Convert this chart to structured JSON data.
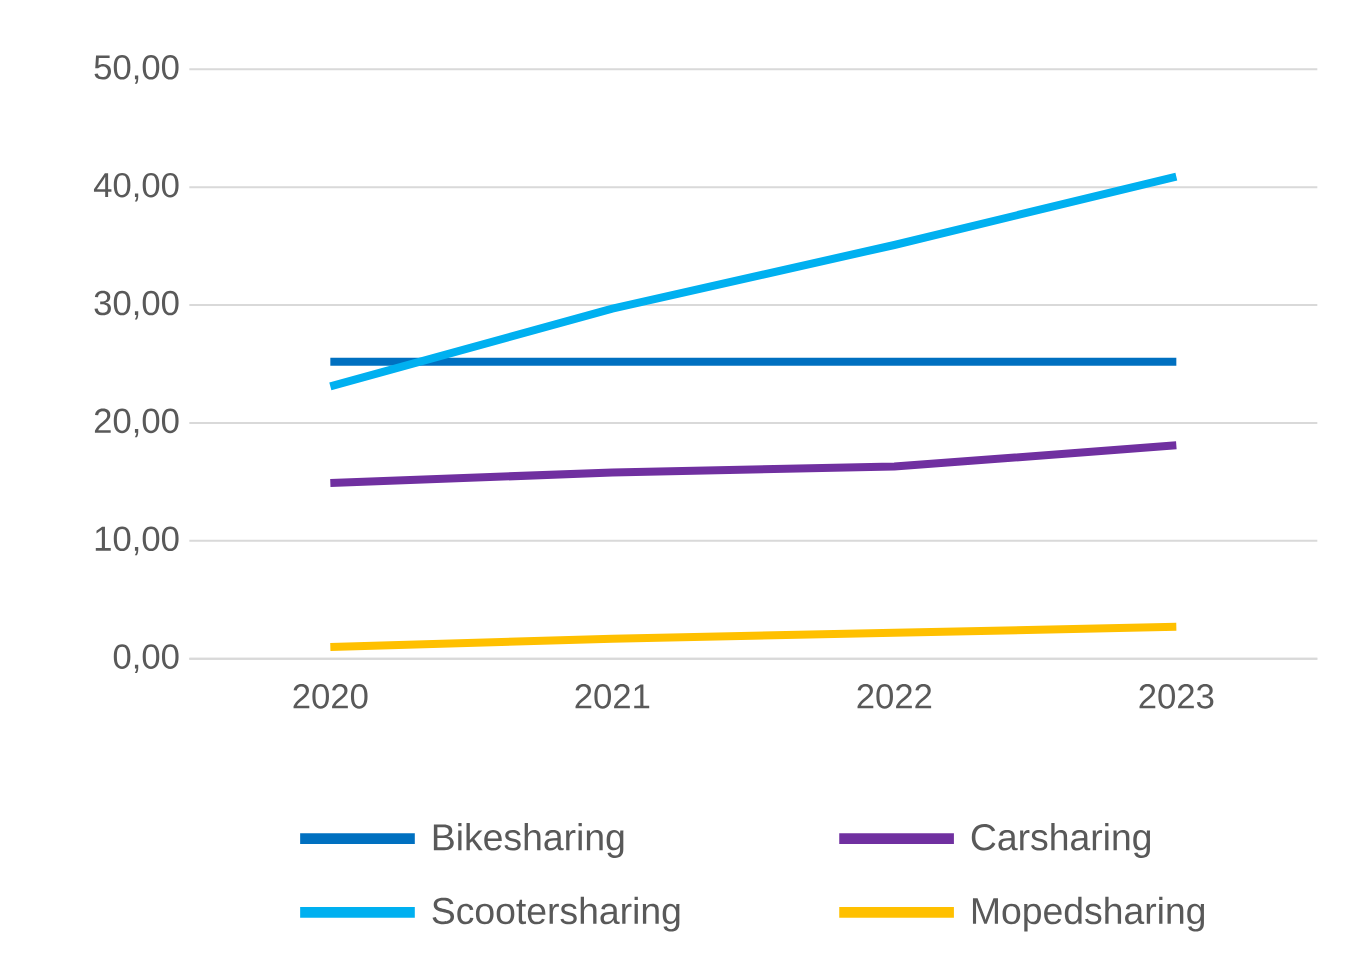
{
  "chart_data": {
    "type": "line",
    "categories": [
      "2020",
      "2021",
      "2022",
      "2023"
    ],
    "series": [
      {
        "name": "Bikesharing",
        "color": "#0070c0",
        "values": [
          25.2,
          25.2,
          25.2,
          25.2
        ]
      },
      {
        "name": "Carsharing",
        "color": "#7030a0",
        "values": [
          14.9,
          15.8,
          16.3,
          18.1
        ]
      },
      {
        "name": "Scootersharing",
        "color": "#00b0f0",
        "values": [
          23.1,
          29.7,
          35.1,
          40.9
        ]
      },
      {
        "name": "Mopedsharing",
        "color": "#ffc000",
        "values": [
          1.0,
          1.7,
          2.2,
          2.7
        ]
      }
    ],
    "ylim": [
      0,
      50
    ],
    "yticks": [
      {
        "value": 0,
        "label": "0,00"
      },
      {
        "value": 10,
        "label": "10,00"
      },
      {
        "value": 20,
        "label": "20,00"
      },
      {
        "value": 30,
        "label": "30,00"
      },
      {
        "value": 40,
        "label": "40,00"
      },
      {
        "value": 50,
        "label": "50,00"
      }
    ],
    "grid": "y",
    "legend": "bottom",
    "marker": "none",
    "line_style": "solid"
  }
}
